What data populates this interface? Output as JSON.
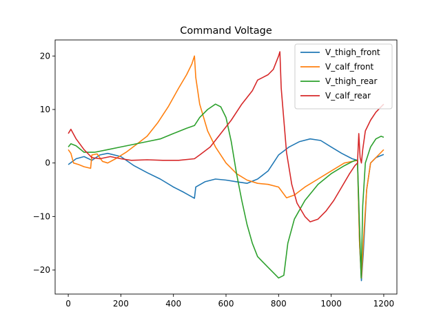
{
  "chart_data": {
    "type": "line",
    "title": "Command Voltage",
    "xlabel": "",
    "ylabel": "",
    "xlim": [
      -50,
      1250
    ],
    "ylim": [
      -24.5,
      23
    ],
    "xticks": [
      0,
      200,
      400,
      600,
      800,
      1000,
      1200
    ],
    "yticks": [
      -20,
      -10,
      0,
      10,
      20
    ],
    "xtick_labels": [
      "0",
      "200",
      "400",
      "600",
      "800",
      "1000",
      "1200"
    ],
    "ytick_labels": [
      "−20",
      "−10",
      "0",
      "10",
      "20"
    ],
    "grid": false,
    "legend_position": "top-right",
    "series": [
      {
        "name": "V_thigh_front",
        "color": "#1f77b4",
        "points": [
          [
            0,
            -0.3
          ],
          [
            30,
            0.8
          ],
          [
            60,
            1.2
          ],
          [
            90,
            0.5
          ],
          [
            120,
            1.5
          ],
          [
            150,
            1.8
          ],
          [
            200,
            1.2
          ],
          [
            250,
            -0.5
          ],
          [
            300,
            -1.8
          ],
          [
            350,
            -3.0
          ],
          [
            400,
            -4.5
          ],
          [
            440,
            -5.5
          ],
          [
            480,
            -6.6
          ],
          [
            485,
            -4.5
          ],
          [
            520,
            -3.5
          ],
          [
            560,
            -3.0
          ],
          [
            600,
            -3.2
          ],
          [
            640,
            -3.5
          ],
          [
            680,
            -3.8
          ],
          [
            720,
            -3.0
          ],
          [
            760,
            -1.5
          ],
          [
            780,
            0.0
          ],
          [
            800,
            1.5
          ],
          [
            840,
            3.0
          ],
          [
            880,
            4.0
          ],
          [
            920,
            4.5
          ],
          [
            960,
            4.2
          ],
          [
            1000,
            3.0
          ],
          [
            1040,
            1.8
          ],
          [
            1080,
            0.8
          ],
          [
            1100,
            0.5
          ],
          [
            1108,
            -15.0
          ],
          [
            1115,
            -22.0
          ],
          [
            1122,
            -17.0
          ],
          [
            1135,
            -5.0
          ],
          [
            1150,
            0.0
          ],
          [
            1170,
            1.0
          ],
          [
            1200,
            1.6
          ]
        ]
      },
      {
        "name": "V_calf_front",
        "color": "#ff7f0e",
        "points": [
          [
            0,
            2.5
          ],
          [
            10,
            1.8
          ],
          [
            20,
            0.0
          ],
          [
            40,
            -0.3
          ],
          [
            60,
            -0.7
          ],
          [
            85,
            -1.0
          ],
          [
            90,
            1.5
          ],
          [
            110,
            1.7
          ],
          [
            130,
            0.3
          ],
          [
            150,
            0.0
          ],
          [
            180,
            0.8
          ],
          [
            220,
            2.0
          ],
          [
            260,
            3.5
          ],
          [
            300,
            5.0
          ],
          [
            340,
            7.5
          ],
          [
            380,
            10.5
          ],
          [
            420,
            14.0
          ],
          [
            450,
            16.5
          ],
          [
            470,
            18.5
          ],
          [
            480,
            20.0
          ],
          [
            485,
            16.0
          ],
          [
            500,
            11.0
          ],
          [
            530,
            6.0
          ],
          [
            560,
            3.0
          ],
          [
            600,
            0.0
          ],
          [
            640,
            -2.0
          ],
          [
            680,
            -3.2
          ],
          [
            720,
            -3.8
          ],
          [
            760,
            -4.0
          ],
          [
            800,
            -4.5
          ],
          [
            830,
            -6.5
          ],
          [
            860,
            -6.0
          ],
          [
            900,
            -4.5
          ],
          [
            950,
            -3.0
          ],
          [
            1000,
            -1.5
          ],
          [
            1050,
            0.0
          ],
          [
            1100,
            0.5
          ],
          [
            1108,
            -15.0
          ],
          [
            1115,
            -21.5
          ],
          [
            1122,
            -15.0
          ],
          [
            1135,
            -5.0
          ],
          [
            1150,
            0.0
          ],
          [
            1180,
            1.5
          ],
          [
            1200,
            2.5
          ]
        ]
      },
      {
        "name": "V_thigh_rear",
        "color": "#2ca02c",
        "points": [
          [
            0,
            3.0
          ],
          [
            10,
            3.6
          ],
          [
            30,
            3.2
          ],
          [
            60,
            2.0
          ],
          [
            100,
            2.0
          ],
          [
            150,
            2.5
          ],
          [
            200,
            3.0
          ],
          [
            250,
            3.5
          ],
          [
            300,
            4.0
          ],
          [
            350,
            4.5
          ],
          [
            400,
            5.5
          ],
          [
            450,
            6.5
          ],
          [
            480,
            7.0
          ],
          [
            500,
            8.5
          ],
          [
            530,
            10.0
          ],
          [
            560,
            11.0
          ],
          [
            580,
            10.5
          ],
          [
            600,
            8.5
          ],
          [
            620,
            4.0
          ],
          [
            640,
            -2.0
          ],
          [
            660,
            -7.0
          ],
          [
            680,
            -11.5
          ],
          [
            700,
            -15.0
          ],
          [
            720,
            -17.5
          ],
          [
            740,
            -18.5
          ],
          [
            760,
            -19.5
          ],
          [
            780,
            -20.5
          ],
          [
            800,
            -21.5
          ],
          [
            820,
            -21.0
          ],
          [
            835,
            -15.0
          ],
          [
            860,
            -10.5
          ],
          [
            900,
            -7.0
          ],
          [
            950,
            -4.0
          ],
          [
            1000,
            -2.0
          ],
          [
            1050,
            -0.5
          ],
          [
            1090,
            0.5
          ],
          [
            1100,
            0.5
          ],
          [
            1108,
            -12.0
          ],
          [
            1114,
            -21.5
          ],
          [
            1120,
            -8.0
          ],
          [
            1130,
            0.0
          ],
          [
            1150,
            3.0
          ],
          [
            1170,
            4.5
          ],
          [
            1190,
            5.0
          ],
          [
            1200,
            4.8
          ]
        ]
      },
      {
        "name": "V_calf_rear",
        "color": "#d62728",
        "points": [
          [
            0,
            5.5
          ],
          [
            10,
            6.3
          ],
          [
            30,
            4.5
          ],
          [
            60,
            2.5
          ],
          [
            90,
            1.0
          ],
          [
            120,
            0.8
          ],
          [
            160,
            1.2
          ],
          [
            200,
            0.8
          ],
          [
            240,
            0.5
          ],
          [
            300,
            0.6
          ],
          [
            360,
            0.5
          ],
          [
            420,
            0.5
          ],
          [
            480,
            0.8
          ],
          [
            500,
            1.5
          ],
          [
            540,
            3.0
          ],
          [
            580,
            5.5
          ],
          [
            620,
            8.0
          ],
          [
            660,
            11.0
          ],
          [
            700,
            13.5
          ],
          [
            720,
            15.5
          ],
          [
            760,
            16.5
          ],
          [
            780,
            17.5
          ],
          [
            800,
            20.0
          ],
          [
            805,
            20.8
          ],
          [
            810,
            14.0
          ],
          [
            830,
            2.0
          ],
          [
            850,
            -4.0
          ],
          [
            870,
            -7.5
          ],
          [
            900,
            -10.0
          ],
          [
            920,
            -11.0
          ],
          [
            950,
            -10.5
          ],
          [
            980,
            -9.0
          ],
          [
            1010,
            -7.0
          ],
          [
            1040,
            -4.5
          ],
          [
            1070,
            -2.0
          ],
          [
            1090,
            -0.5
          ],
          [
            1100,
            0.0
          ],
          [
            1105,
            5.5
          ],
          [
            1110,
            1.0
          ],
          [
            1115,
            0.0
          ],
          [
            1120,
            2.5
          ],
          [
            1130,
            6.0
          ],
          [
            1150,
            8.0
          ],
          [
            1170,
            9.5
          ],
          [
            1190,
            10.5
          ],
          [
            1200,
            11.0
          ]
        ]
      }
    ]
  }
}
